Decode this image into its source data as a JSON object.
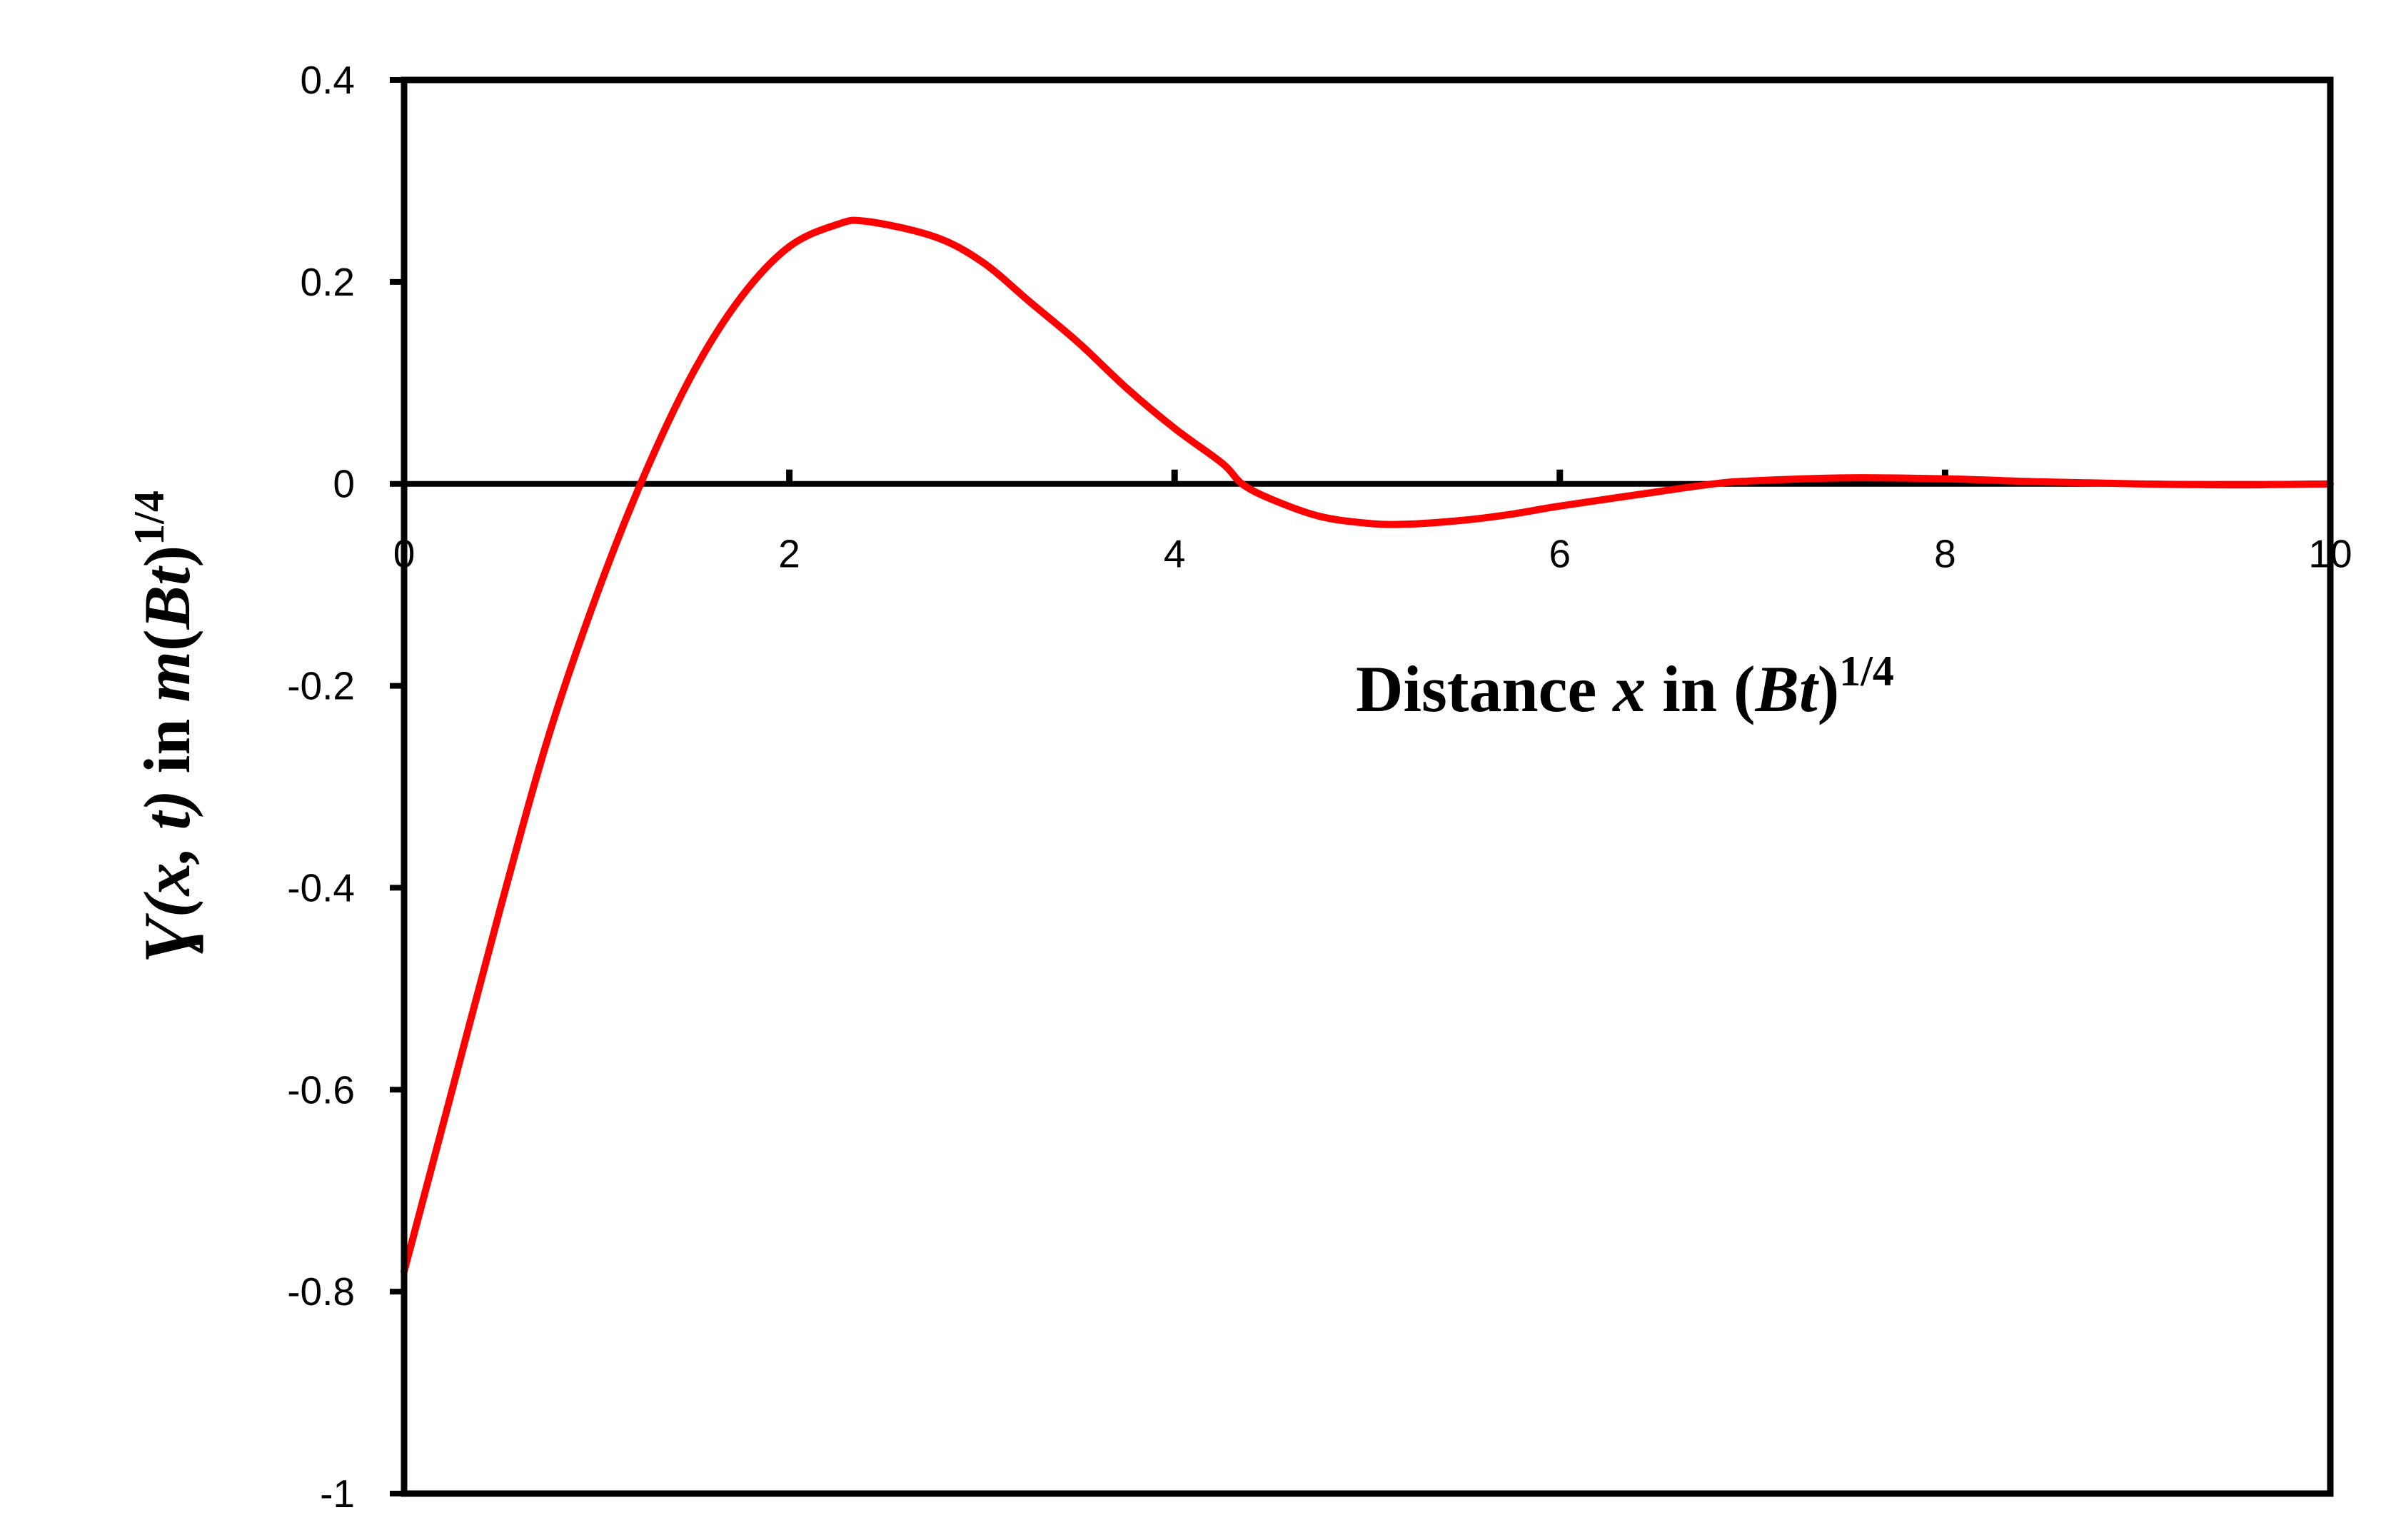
{
  "chart_data": {
    "type": "line",
    "xlabel": {
      "prefix": "Distance ",
      "var": "x",
      "mid": " in (",
      "unit": "Bt",
      "close": ")",
      "exp": "1/4"
    },
    "ylabel": {
      "func": "Ɣ",
      "args": "(x, t)",
      "mid": " in ",
      "m": "m",
      "paren": "(",
      "unit": "Bt",
      "close": ")",
      "exp": "1/4"
    },
    "xlim": [
      0,
      10
    ],
    "ylim": [
      -1,
      0.4
    ],
    "x_ticks": [
      0,
      2,
      4,
      6,
      8,
      10
    ],
    "x_tick_labels": [
      "0",
      "2",
      "4",
      "6",
      "8",
      "10"
    ],
    "y_ticks": [
      0.4,
      0.2,
      0,
      -0.2,
      -0.4,
      -0.6,
      -0.8,
      -1
    ],
    "y_tick_labels": [
      "0.4",
      "0.2",
      "0",
      "-0.2",
      "-0.4",
      "-0.6",
      "-0.8",
      "-1"
    ],
    "grid": false,
    "legend": "none",
    "series": [
      {
        "color": "#ff0000",
        "x": [
          0,
          0.25,
          0.5,
          0.75,
          1.0,
          1.25,
          1.5,
          1.75,
          2.0,
          2.25,
          2.4,
          2.75,
          3.0,
          3.25,
          3.5,
          3.75,
          4.0,
          4.25,
          4.35,
          4.5,
          4.75,
          5.0,
          5.2,
          5.5,
          5.75,
          6.0,
          6.5,
          6.8,
          7.0,
          7.5,
          8.0,
          8.5,
          9.0,
          9.5,
          10.0
        ],
        "y": [
          -0.78,
          -0.6,
          -0.42,
          -0.25,
          -0.11,
          0.01,
          0.11,
          0.185,
          0.235,
          0.257,
          0.26,
          0.245,
          0.22,
          0.18,
          0.14,
          0.095,
          0.055,
          0.02,
          0.0,
          -0.015,
          -0.032,
          -0.039,
          -0.04,
          -0.036,
          -0.03,
          -0.022,
          -0.008,
          0.0,
          0.003,
          0.006,
          0.005,
          0.002,
          0.0,
          -0.001,
          0.0
        ]
      }
    ],
    "axis_line_color": "#000000"
  }
}
